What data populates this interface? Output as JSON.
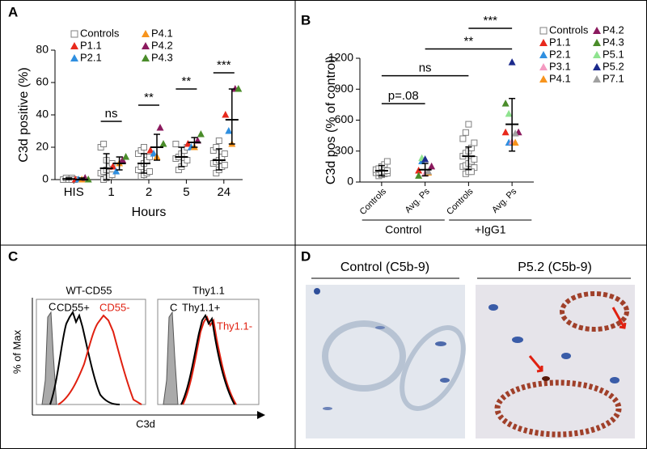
{
  "chart_data": [
    {
      "type": "dot",
      "y_label": "C3d positive (%)",
      "x_label": "Hours",
      "categories": [
        "HIS",
        "1",
        "2",
        "5",
        "24"
      ],
      "ylim": [
        0,
        80
      ],
      "yticks": [
        0,
        20,
        40,
        60,
        80
      ],
      "series": [
        {
          "name": "Controls",
          "color": "#808080",
          "marker": "square",
          "x": [
            "HIS",
            "HIS",
            "HIS",
            "HIS",
            "HIS",
            "HIS",
            "HIS",
            "HIS",
            "1",
            "1",
            "1",
            "1",
            "1",
            "1",
            "1",
            "1",
            "1",
            "1",
            "1",
            "1",
            "2",
            "2",
            "2",
            "2",
            "2",
            "2",
            "2",
            "2",
            "2",
            "2",
            "2",
            "2",
            "5",
            "5",
            "5",
            "5",
            "5",
            "5",
            "5",
            "5",
            "5",
            "5",
            "24",
            "24",
            "24",
            "24",
            "24",
            "24",
            "24",
            "24",
            "24",
            "24",
            "24",
            "24"
          ],
          "values": [
            0,
            0,
            1,
            0,
            0,
            1,
            0,
            0,
            0,
            1,
            2,
            3,
            4,
            5,
            6,
            8,
            10,
            20,
            22,
            12,
            2,
            3,
            4,
            5,
            6,
            8,
            10,
            12,
            14,
            16,
            18,
            20,
            6,
            8,
            10,
            12,
            13,
            14,
            16,
            18,
            20,
            22,
            4,
            6,
            8,
            9,
            10,
            11,
            12,
            14,
            16,
            18,
            20,
            24
          ]
        },
        {
          "name": "P1.1",
          "color": "#e8291c",
          "marker": "triangle",
          "values": [
            0,
            8,
            18,
            22,
            40
          ]
        },
        {
          "name": "P2.1",
          "color": "#2f8fe0",
          "marker": "triangle",
          "values": [
            0,
            5,
            16,
            20,
            30
          ]
        },
        {
          "name": "P4.1",
          "color": "#f7941d",
          "marker": "triangle",
          "values": [
            0,
            10,
            14,
            20,
            22
          ]
        },
        {
          "name": "P4.2",
          "color": "#8b1a5e",
          "marker": "triangle",
          "values": [
            1,
            12,
            32,
            24,
            56
          ]
        },
        {
          "name": "P4.3",
          "color": "#4a8c2a",
          "marker": "triangle",
          "values": [
            0,
            14,
            22,
            28,
            56
          ]
        }
      ],
      "control_error_bars": [
        {
          "mean": 0.4,
          "low": 0,
          "high": 1
        },
        {
          "mean": 7,
          "low": 0,
          "high": 16
        },
        {
          "mean": 10,
          "low": 4,
          "high": 16
        },
        {
          "mean": 14,
          "low": 8,
          "high": 20
        },
        {
          "mean": 12,
          "low": 6,
          "high": 19
        }
      ],
      "patient_error_bars": [
        {
          "mean": 0,
          "low": 0,
          "high": 1
        },
        {
          "mean": 10,
          "low": 6,
          "high": 14
        },
        {
          "mean": 20,
          "low": 12,
          "high": 28
        },
        {
          "mean": 23,
          "low": 20,
          "high": 26
        },
        {
          "mean": 37,
          "low": 22,
          "high": 56
        }
      ],
      "annotations": [
        {
          "text": "ns",
          "category": "1",
          "y": 36
        },
        {
          "text": "**",
          "category": "2",
          "y": 46
        },
        {
          "text": "**",
          "category": "5",
          "y": 56
        },
        {
          "text": "***",
          "category": "24",
          "y": 66
        }
      ]
    },
    {
      "type": "dot",
      "y_label": "C3d pos (% of control)",
      "categories": [
        "Controls",
        "Avg. Ps",
        "Controls",
        "Avg. Ps"
      ],
      "groups": [
        {
          "label": "Control",
          "from": 0,
          "to": 1
        },
        {
          "label": "+IgG1",
          "from": 2,
          "to": 3
        }
      ],
      "ylim": [
        0,
        1200
      ],
      "yticks": [
        0,
        300,
        600,
        900,
        1200
      ],
      "series": [
        {
          "name": "Controls",
          "color": "#808080",
          "marker": "square",
          "x": [
            0,
            0,
            0,
            0,
            0,
            0,
            0,
            0,
            0,
            0,
            0,
            0,
            0,
            0,
            2,
            2,
            2,
            2,
            2,
            2,
            2,
            2,
            2,
            2,
            2,
            2,
            2,
            2,
            2,
            2,
            2,
            2
          ],
          "values": [
            60,
            70,
            80,
            85,
            90,
            95,
            100,
            105,
            110,
            120,
            130,
            150,
            170,
            200,
            80,
            100,
            120,
            140,
            150,
            160,
            180,
            200,
            220,
            250,
            280,
            300,
            330,
            380,
            420,
            480,
            560,
            100
          ]
        },
        {
          "name": "P1.1",
          "color": "#e8291c",
          "marker": "triangle",
          "x": [
            1,
            3
          ],
          "values": [
            110,
            480
          ]
        },
        {
          "name": "P2.1",
          "color": "#2f8fe0",
          "marker": "triangle",
          "x": [
            1,
            3
          ],
          "values": [
            200,
            380
          ]
        },
        {
          "name": "P3.1",
          "color": "#f49ac1",
          "marker": "triangle",
          "x": [
            1,
            3
          ],
          "values": [
            80,
            390
          ]
        },
        {
          "name": "P4.1",
          "color": "#f7941d",
          "marker": "triangle",
          "x": [
            1,
            3
          ],
          "values": [
            90,
            380
          ]
        },
        {
          "name": "P4.2",
          "color": "#8b1a5e",
          "marker": "triangle",
          "x": [
            1,
            3
          ],
          "values": [
            150,
            480
          ]
        },
        {
          "name": "P4.3",
          "color": "#4a8c2a",
          "marker": "triangle",
          "x": [
            1,
            3
          ],
          "values": [
            60,
            760
          ]
        },
        {
          "name": "P5.1",
          "color": "#8fe38f",
          "marker": "triangle",
          "x": [
            1,
            3
          ],
          "values": [
            230,
            660
          ]
        },
        {
          "name": "P5.2",
          "color": "#1b2a8c",
          "marker": "triangle",
          "x": [
            1,
            3
          ],
          "values": [
            220,
            1160
          ]
        },
        {
          "name": "P7.1",
          "color": "#a0a0a0",
          "marker": "triangle",
          "x": [
            1,
            3
          ],
          "values": [
            100,
            470
          ]
        }
      ],
      "error_bars": [
        {
          "mean": 110,
          "low": 60,
          "high": 160
        },
        {
          "mean": 120,
          "low": 60,
          "high": 180
        },
        {
          "mean": 250,
          "low": 120,
          "high": 340
        },
        {
          "mean": 560,
          "low": 300,
          "high": 810
        }
      ],
      "annotations": [
        {
          "text": "p=.08",
          "from": 0,
          "to": 1,
          "y": 760
        },
        {
          "text": "ns",
          "from": 0,
          "to": 2,
          "y": 1030
        },
        {
          "text": "**",
          "from": 1,
          "to": 3,
          "y": 1290
        },
        {
          "text": "***",
          "from": 2,
          "to": 3,
          "y": 1490
        }
      ]
    }
  ],
  "panels": {
    "labels": [
      "A",
      "B",
      "C",
      "D"
    ],
    "flow": {
      "y_label": "% of Max",
      "x_label": "C3d",
      "plots": [
        {
          "title": "WT-CD55",
          "control": "C",
          "positive": "CD55+",
          "negative": "CD55-"
        },
        {
          "title": "Thy1.1",
          "control": "C",
          "positive": "Thy1.1+",
          "negative": "Thy1.1-"
        }
      ]
    },
    "histology": {
      "images": [
        "Control (C5b-9)",
        "P5.2 (C5b-9)"
      ]
    }
  }
}
